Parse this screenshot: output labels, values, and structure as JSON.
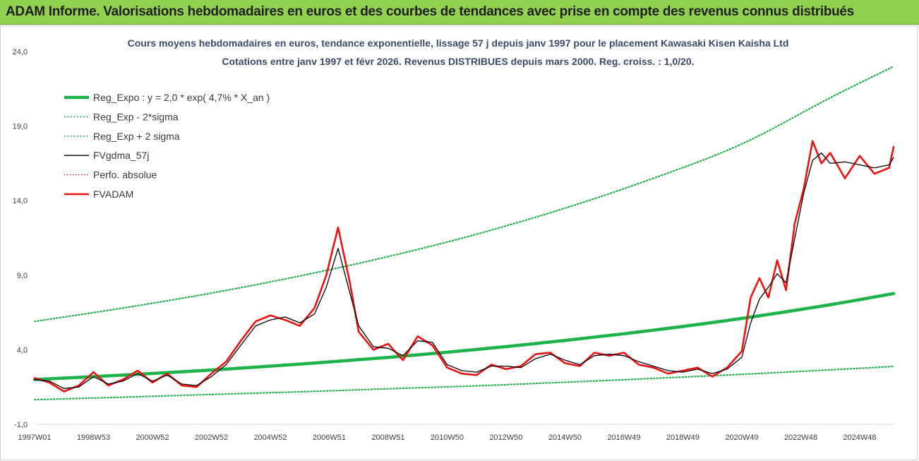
{
  "header": {
    "banner_title": "ADAM Informe. Valorisations hebdomadaires en euros et des courbes de tendances avec prise en compte des revenus connus distribués"
  },
  "chart_data": {
    "type": "line",
    "title": "Cours moyens hebdomadaires en euros, tendance exponentielle, lissage 57 j depuis janv 1997  pour le placement Kawasaki Kisen Kaisha Ltd",
    "subtitle": "Cotations entre janv 1997 et févr 2026. Revenus DISTRIBUES  depuis mars 2000. Reg. croiss. : 1,0/20.",
    "xlabel": "",
    "ylabel": "",
    "ylim": [
      -1.0,
      24.0
    ],
    "xlim": [
      1997.0,
      2026.15
    ],
    "y_ticks": [
      "-1,0",
      "4,0",
      "9,0",
      "14,0",
      "19,0",
      "24,0"
    ],
    "y_tick_values": [
      -1,
      4,
      9,
      14,
      19,
      24
    ],
    "x_tick_labels": [
      "1997W01",
      "1998W53",
      "2000W52",
      "2002W52",
      "2004W52",
      "2006W51",
      "2008W51",
      "2010W50",
      "2012W50",
      "2014W50",
      "2016W49",
      "2018W49",
      "2020W49",
      "2022W48",
      "2024W48"
    ],
    "x_tick_years": [
      1997.0,
      1999.0,
      2001.0,
      2003.0,
      2005.0,
      2007.0,
      2009.0,
      2011.0,
      2013.0,
      2015.0,
      2017.0,
      2019.0,
      2021.0,
      2023.0,
      2025.0
    ],
    "grid": false,
    "legend_position": "top-left",
    "colors": {
      "reg_expo": "#1db34a",
      "sigma": "#22b14c",
      "fvgdma": "#000000",
      "perfo": "#ff0000",
      "fvadam": "#ee1111"
    },
    "series": [
      {
        "name": "Reg_Expo : y = 2,0 * exp( 4,7% *  X_an )",
        "style": "thick",
        "x": [
          1997.0,
          2000.0,
          2003.0,
          2006.0,
          2009.0,
          2012.0,
          2015.0,
          2018.0,
          2021.0,
          2024.0,
          2026.15
        ],
        "values": [
          2.0,
          2.3,
          2.64,
          3.04,
          3.49,
          4.02,
          4.62,
          5.31,
          6.1,
          7.02,
          7.77
        ]
      },
      {
        "name": "Reg_Exp - 2*sigma",
        "style": "dotted",
        "x": [
          1997.0,
          2000.0,
          2003.0,
          2006.0,
          2009.0,
          2012.0,
          2015.0,
          2018.0,
          2021.0,
          2024.0,
          2026.15
        ],
        "values": [
          0.65,
          0.82,
          1.0,
          1.18,
          1.38,
          1.58,
          1.82,
          2.08,
          2.35,
          2.65,
          2.88
        ]
      },
      {
        "name": "Reg_Exp + 2 sigma",
        "style": "dotted",
        "x": [
          1997.0,
          2000.0,
          2003.0,
          2006.0,
          2009.0,
          2012.0,
          2015.0,
          2018.0,
          2021.0,
          2024.0,
          2026.15
        ],
        "values": [
          5.9,
          6.8,
          7.8,
          8.95,
          10.25,
          11.75,
          13.5,
          15.5,
          17.8,
          20.9,
          23.0
        ]
      },
      {
        "name": "FVgdma_57j",
        "style": "thin",
        "x": [
          1997.0,
          1997.5,
          1998.0,
          1998.5,
          1999.0,
          1999.5,
          2000.0,
          2000.5,
          2001.0,
          2001.5,
          2002.0,
          2002.5,
          2003.0,
          2003.5,
          2004.0,
          2004.5,
          2005.0,
          2005.5,
          2006.0,
          2006.5,
          2006.9,
          2007.3,
          2007.7,
          2008.0,
          2008.5,
          2009.0,
          2009.5,
          2010.0,
          2010.5,
          2011.0,
          2011.5,
          2012.0,
          2012.5,
          2013.0,
          2013.5,
          2014.0,
          2014.5,
          2015.0,
          2015.5,
          2016.0,
          2016.5,
          2017.0,
          2017.5,
          2018.0,
          2018.5,
          2019.0,
          2019.5,
          2020.0,
          2020.5,
          2021.0,
          2021.3,
          2021.6,
          2021.9,
          2022.2,
          2022.5,
          2022.8,
          2023.1,
          2023.4,
          2023.7,
          2024.0,
          2024.5,
          2025.0,
          2025.5,
          2026.0,
          2026.15
        ],
        "values": [
          2.0,
          1.9,
          1.4,
          1.5,
          2.2,
          1.7,
          1.9,
          2.4,
          1.9,
          2.3,
          1.7,
          1.6,
          2.2,
          3.0,
          4.3,
          5.6,
          6.0,
          6.2,
          5.8,
          6.4,
          8.2,
          10.8,
          7.8,
          5.6,
          4.2,
          4.1,
          3.6,
          4.6,
          4.5,
          3.0,
          2.6,
          2.5,
          2.9,
          2.9,
          2.8,
          3.4,
          3.7,
          3.3,
          3.0,
          3.6,
          3.7,
          3.6,
          3.2,
          2.9,
          2.6,
          2.5,
          2.7,
          2.4,
          2.7,
          3.5,
          5.8,
          7.4,
          8.2,
          9.1,
          8.5,
          11.5,
          14.5,
          16.7,
          17.2,
          16.5,
          16.6,
          16.4,
          16.2,
          16.4,
          16.9
        ]
      },
      {
        "name": "Perfo. absolue",
        "style": "dotted-thin",
        "x": [],
        "values": []
      },
      {
        "name": "FVADAM",
        "style": "thick-red",
        "x": [
          1997.0,
          1997.5,
          1998.0,
          1998.5,
          1999.0,
          1999.5,
          2000.0,
          2000.5,
          2001.0,
          2001.5,
          2002.0,
          2002.5,
          2003.0,
          2003.5,
          2004.0,
          2004.5,
          2005.0,
          2005.5,
          2006.0,
          2006.5,
          2006.9,
          2007.3,
          2007.7,
          2008.0,
          2008.5,
          2009.0,
          2009.5,
          2010.0,
          2010.5,
          2011.0,
          2011.5,
          2012.0,
          2012.5,
          2013.0,
          2013.5,
          2014.0,
          2014.5,
          2015.0,
          2015.5,
          2016.0,
          2016.5,
          2017.0,
          2017.5,
          2018.0,
          2018.5,
          2019.0,
          2019.5,
          2020.0,
          2020.5,
          2021.0,
          2021.3,
          2021.6,
          2021.9,
          2022.2,
          2022.5,
          2022.8,
          2023.1,
          2023.4,
          2023.7,
          2024.0,
          2024.5,
          2025.0,
          2025.5,
          2026.0,
          2026.15
        ],
        "values": [
          2.1,
          1.8,
          1.2,
          1.6,
          2.5,
          1.6,
          2.0,
          2.6,
          1.8,
          2.4,
          1.6,
          1.5,
          2.4,
          3.2,
          4.6,
          5.9,
          6.3,
          6.0,
          5.6,
          6.8,
          9.0,
          12.2,
          8.5,
          5.2,
          4.0,
          4.4,
          3.3,
          4.9,
          4.3,
          2.8,
          2.4,
          2.3,
          3.0,
          2.7,
          2.9,
          3.7,
          3.8,
          3.1,
          2.9,
          3.8,
          3.6,
          3.8,
          3.0,
          2.8,
          2.4,
          2.6,
          2.8,
          2.2,
          2.8,
          3.9,
          7.5,
          8.8,
          7.5,
          10.0,
          8.0,
          12.5,
          14.8,
          18.0,
          16.5,
          17.2,
          15.5,
          17.0,
          15.8,
          16.2,
          17.6
        ]
      }
    ]
  }
}
